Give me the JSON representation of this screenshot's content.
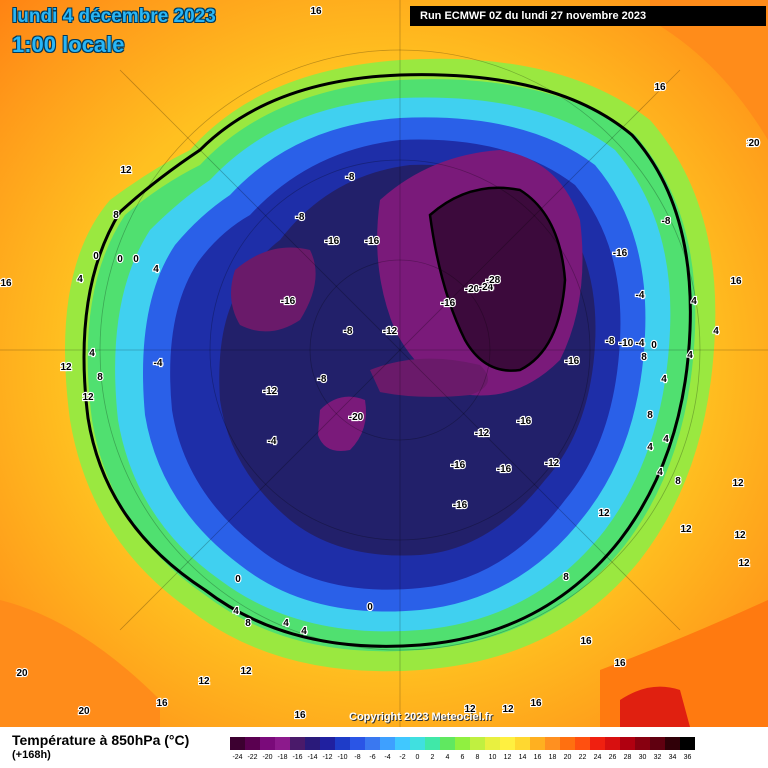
{
  "header": {
    "date_label": "lundi 4 décembre 2023",
    "time_label": "1:00 locale",
    "run_label": "Run ECMWF 0Z du lundi 27 novembre 2023"
  },
  "footer": {
    "variable_label": "Température à 850hPa (°C)",
    "forecast_offset": "(+168h)",
    "copyright": "Copyright 2023 Meteociel.fr"
  },
  "legend": {
    "ticks": [
      "-24",
      "-22",
      "-20",
      "-18",
      "-16",
      "-14",
      "-12",
      "-10",
      "-8",
      "-6",
      "-4",
      "-2",
      "0",
      "2",
      "4",
      "6",
      "8",
      "10",
      "12",
      "14",
      "16",
      "18",
      "20",
      "22",
      "24",
      "26",
      "28",
      "30",
      "32",
      "34",
      "36"
    ],
    "colors": [
      "#3c0030",
      "#5a0050",
      "#7a0a7a",
      "#8c1a8c",
      "#4a1a6a",
      "#2a1a7a",
      "#2020a0",
      "#1e3cc8",
      "#2a55e6",
      "#3a78f0",
      "#3ea0ff",
      "#40c8ff",
      "#40e0e0",
      "#40e8a8",
      "#60e860",
      "#90f040",
      "#c0f040",
      "#e8f040",
      "#fff040",
      "#ffd830",
      "#ffb020",
      "#ff9020",
      "#ff7010",
      "#ff5010",
      "#f02010",
      "#d81010",
      "#b00010",
      "#880010",
      "#600010",
      "#300008",
      "#000000"
    ]
  },
  "map": {
    "colors": {
      "outer_orange": "#ff8c1a",
      "yellow": "#ffe030",
      "green": "#70e040",
      "cyan": "#40d8f0",
      "blue": "#2050e0",
      "dark_blue": "#1a2aa0",
      "navy": "#221a5a",
      "purple": "#6a1a6a",
      "deep_purple": "#3c0a3c"
    },
    "labels": [
      {
        "text": "16"
      },
      {
        "text": "16"
      },
      {
        "text": "16"
      },
      {
        "text": "20"
      },
      {
        "text": "12"
      },
      {
        "text": "8"
      },
      {
        "text": "0"
      },
      {
        "text": "0"
      },
      {
        "text": "0"
      },
      {
        "text": "4"
      },
      {
        "text": "4"
      },
      {
        "text": "16"
      },
      {
        "text": "12"
      },
      {
        "text": "8"
      },
      {
        "text": "4"
      },
      {
        "text": "12"
      },
      {
        "text": "-4"
      },
      {
        "text": "-8"
      },
      {
        "text": "-8"
      },
      {
        "text": "-16"
      },
      {
        "text": "-16"
      },
      {
        "text": "-16"
      },
      {
        "text": "-8"
      },
      {
        "text": "-12"
      },
      {
        "text": "-12"
      },
      {
        "text": "-8"
      },
      {
        "text": "-4"
      },
      {
        "text": "-16"
      },
      {
        "text": "-20"
      },
      {
        "text": "-24"
      },
      {
        "text": "-28"
      },
      {
        "text": "-16"
      },
      {
        "text": "-16"
      },
      {
        "text": "-8"
      },
      {
        "text": "-4"
      },
      {
        "text": "-8"
      },
      {
        "text": "-10"
      },
      {
        "text": "-4"
      },
      {
        "text": "0"
      },
      {
        "text": "-20"
      },
      {
        "text": "-16"
      },
      {
        "text": "-12"
      },
      {
        "text": "-16"
      },
      {
        "text": "-16"
      },
      {
        "text": "-12"
      },
      {
        "text": "-16"
      },
      {
        "text": "8"
      },
      {
        "text": "16"
      },
      {
        "text": "4"
      },
      {
        "text": "4"
      },
      {
        "text": "4"
      },
      {
        "text": "4"
      },
      {
        "text": "8"
      },
      {
        "text": "4"
      },
      {
        "text": "4"
      },
      {
        "text": "8"
      },
      {
        "text": "12"
      },
      {
        "text": "12"
      },
      {
        "text": "12"
      },
      {
        "text": "12"
      },
      {
        "text": "8"
      },
      {
        "text": "16"
      },
      {
        "text": "16"
      },
      {
        "text": "20"
      },
      {
        "text": "0"
      },
      {
        "text": "4"
      },
      {
        "text": "8"
      },
      {
        "text": "4"
      },
      {
        "text": "4"
      },
      {
        "text": "0"
      },
      {
        "text": "12"
      },
      {
        "text": "12"
      },
      {
        "text": "16"
      },
      {
        "text": "20"
      },
      {
        "text": "20"
      },
      {
        "text": "16"
      },
      {
        "text": "12"
      },
      {
        "text": "12"
      },
      {
        "text": "16"
      },
      {
        "text": "4"
      },
      {
        "text": "12"
      },
      {
        "text": "16"
      }
    ]
  }
}
